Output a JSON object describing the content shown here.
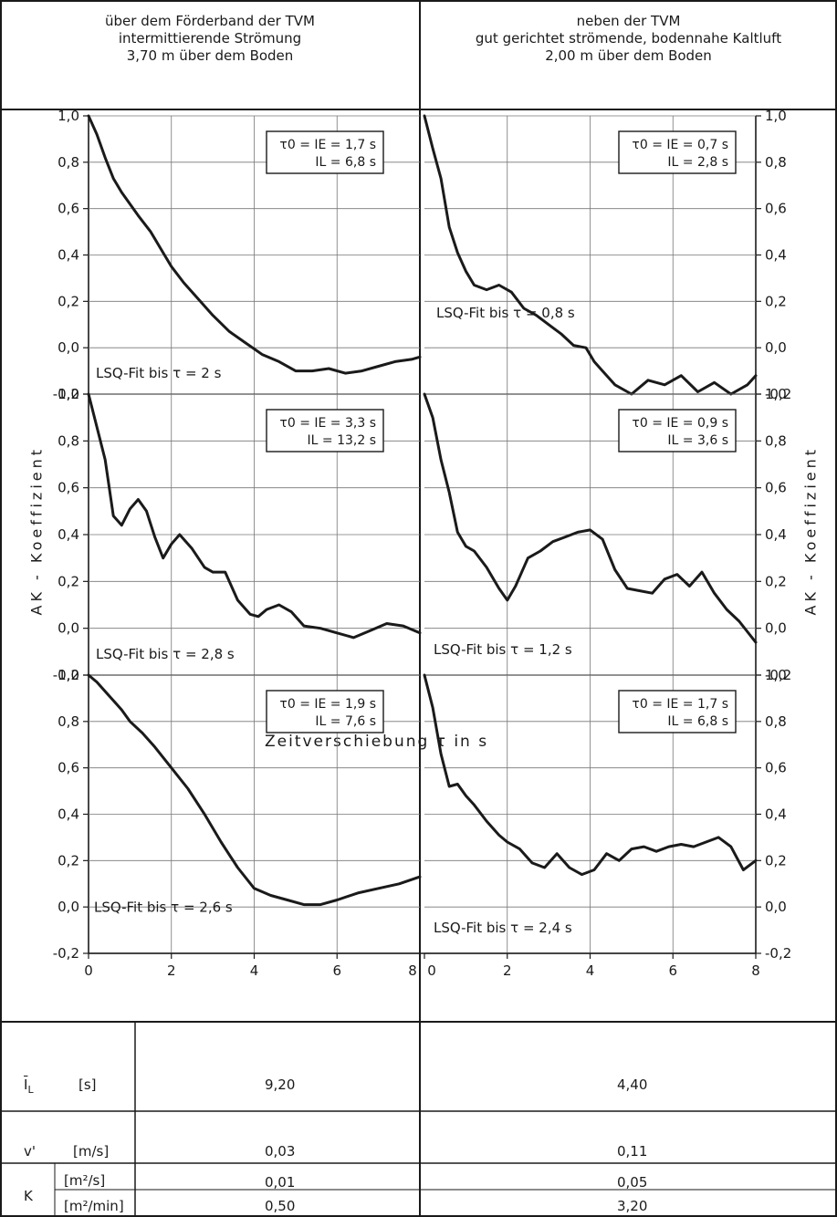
{
  "header": {
    "left": {
      "line1": "über dem Förderband der TVM",
      "line2": "intermittierende Strömung",
      "line3": "3,70 m über dem Boden"
    },
    "right": {
      "line1": "neben der TVM",
      "line2": "gut gerichtet strömende, bodennahe Kaltluft",
      "line3": "2,00 m über dem Boden"
    }
  },
  "axes": {
    "ylabel": "AK - Koeffizient",
    "xlabel": "Zeitverschiebung τ in s",
    "xticks": [
      "0",
      "2",
      "4",
      "6",
      "8"
    ],
    "yticks": [
      "1,0",
      "0,8",
      "0,6",
      "0,4",
      "0,2",
      "0,0",
      "-0,2"
    ]
  },
  "chart_data": [
    {
      "type": "line",
      "column": "left",
      "row": 1,
      "xlim": [
        0,
        8
      ],
      "ylim": [
        -0.2,
        1.0
      ],
      "grid": true,
      "box": [
        "τ0 = IE = 1,7 s",
        "IL = 6,8 s"
      ],
      "annotation": "LSQ-Fit bis τ = 2 s",
      "x": [
        0,
        0.2,
        0.4,
        0.6,
        0.8,
        1.0,
        1.2,
        1.5,
        1.8,
        2.0,
        2.3,
        2.6,
        3.0,
        3.4,
        3.8,
        4.2,
        4.6,
        5.0,
        5.4,
        5.8,
        6.2,
        6.6,
        7.0,
        7.4,
        7.8,
        8.0
      ],
      "y": [
        1.0,
        0.92,
        0.82,
        0.73,
        0.67,
        0.62,
        0.57,
        0.5,
        0.41,
        0.35,
        0.28,
        0.22,
        0.14,
        0.07,
        0.02,
        -0.03,
        -0.06,
        -0.1,
        -0.1,
        -0.09,
        -0.11,
        -0.1,
        -0.08,
        -0.06,
        -0.05,
        -0.04
      ]
    },
    {
      "type": "line",
      "column": "left",
      "row": 2,
      "xlim": [
        0,
        8
      ],
      "ylim": [
        -0.2,
        1.0
      ],
      "grid": true,
      "box": [
        "τ0 = IE = 3,3 s",
        "IL = 13,2 s"
      ],
      "annotation": "LSQ-Fit bis τ = 2,8 s",
      "x": [
        0,
        0.2,
        0.4,
        0.6,
        0.8,
        1.0,
        1.2,
        1.4,
        1.6,
        1.8,
        2.0,
        2.2,
        2.5,
        2.8,
        3.0,
        3.3,
        3.6,
        3.9,
        4.1,
        4.3,
        4.6,
        4.9,
        5.2,
        5.6,
        6.0,
        6.4,
        6.8,
        7.2,
        7.6,
        8.0
      ],
      "y": [
        1.0,
        0.86,
        0.72,
        0.48,
        0.44,
        0.51,
        0.55,
        0.5,
        0.39,
        0.3,
        0.36,
        0.4,
        0.34,
        0.26,
        0.24,
        0.24,
        0.12,
        0.06,
        0.05,
        0.08,
        0.1,
        0.07,
        0.01,
        0.0,
        -0.02,
        -0.04,
        -0.01,
        0.02,
        0.01,
        -0.02
      ]
    },
    {
      "type": "line",
      "column": "left",
      "row": 3,
      "xlim": [
        0,
        8
      ],
      "ylim": [
        -0.2,
        1.0
      ],
      "grid": true,
      "box": [
        "τ0 = IE = 1,9 s",
        "IL = 7,6 s"
      ],
      "annotation": "LSQ-Fit bis τ = 2,6 s",
      "x": [
        0,
        0.2,
        0.5,
        0.8,
        1.0,
        1.3,
        1.6,
        2.0,
        2.4,
        2.8,
        3.2,
        3.6,
        4.0,
        4.4,
        4.8,
        5.2,
        5.6,
        6.0,
        6.5,
        7.0,
        7.5,
        8.0
      ],
      "y": [
        1.0,
        0.97,
        0.91,
        0.85,
        0.8,
        0.75,
        0.69,
        0.6,
        0.51,
        0.4,
        0.28,
        0.17,
        0.08,
        0.05,
        0.03,
        0.01,
        0.01,
        0.03,
        0.06,
        0.08,
        0.1,
        0.13
      ]
    },
    {
      "type": "line",
      "column": "right",
      "row": 1,
      "xlim": [
        0,
        8
      ],
      "ylim": [
        -0.2,
        1.0
      ],
      "grid": true,
      "box": [
        "τ0 = IE = 0,7 s",
        "IL = 2,8 s"
      ],
      "annotation": "LSQ-Fit bis τ = 0,8 s",
      "x": [
        0,
        0.2,
        0.4,
        0.6,
        0.8,
        1.0,
        1.2,
        1.5,
        1.8,
        2.1,
        2.4,
        2.7,
        3.0,
        3.3,
        3.6,
        3.9,
        4.1,
        4.3,
        4.6,
        5.0,
        5.4,
        5.8,
        6.2,
        6.6,
        7.0,
        7.4,
        7.8,
        8.0
      ],
      "y": [
        1.0,
        0.86,
        0.73,
        0.52,
        0.41,
        0.33,
        0.27,
        0.25,
        0.27,
        0.24,
        0.17,
        0.14,
        0.1,
        0.06,
        0.01,
        0.0,
        -0.06,
        -0.1,
        -0.16,
        -0.2,
        -0.14,
        -0.16,
        -0.12,
        -0.19,
        -0.15,
        -0.2,
        -0.16,
        -0.12
      ]
    },
    {
      "type": "line",
      "column": "right",
      "row": 2,
      "xlim": [
        0,
        8
      ],
      "ylim": [
        -0.2,
        1.0
      ],
      "grid": true,
      "box": [
        "τ0 = IE = 0,9 s",
        "IL = 3,6 s"
      ],
      "annotation": "LSQ-Fit bis τ = 1,2 s",
      "x": [
        0,
        0.2,
        0.4,
        0.6,
        0.8,
        1.0,
        1.2,
        1.5,
        1.8,
        2.0,
        2.2,
        2.5,
        2.8,
        3.1,
        3.4,
        3.7,
        4.0,
        4.3,
        4.6,
        4.9,
        5.2,
        5.5,
        5.8,
        6.1,
        6.4,
        6.7,
        7.0,
        7.3,
        7.6,
        8.0
      ],
      "y": [
        1.0,
        0.9,
        0.72,
        0.58,
        0.41,
        0.35,
        0.33,
        0.26,
        0.17,
        0.12,
        0.18,
        0.3,
        0.33,
        0.37,
        0.39,
        0.41,
        0.42,
        0.38,
        0.25,
        0.17,
        0.16,
        0.15,
        0.21,
        0.23,
        0.18,
        0.24,
        0.15,
        0.08,
        0.03,
        -0.06
      ]
    },
    {
      "type": "line",
      "column": "right",
      "row": 3,
      "xlim": [
        0,
        8
      ],
      "ylim": [
        -0.2,
        1.0
      ],
      "grid": true,
      "box": [
        "τ0 = IE = 1,7 s",
        "IL = 6,8 s"
      ],
      "annotation": "LSQ-Fit bis τ = 2,4 s",
      "x": [
        0,
        0.2,
        0.4,
        0.6,
        0.8,
        1.0,
        1.2,
        1.5,
        1.8,
        2.0,
        2.3,
        2.6,
        2.9,
        3.2,
        3.5,
        3.8,
        4.1,
        4.4,
        4.7,
        5.0,
        5.3,
        5.6,
        5.9,
        6.2,
        6.5,
        6.8,
        7.1,
        7.4,
        7.7,
        8.0
      ],
      "y": [
        1.0,
        0.86,
        0.66,
        0.52,
        0.53,
        0.48,
        0.44,
        0.37,
        0.31,
        0.28,
        0.25,
        0.19,
        0.17,
        0.23,
        0.17,
        0.14,
        0.16,
        0.23,
        0.2,
        0.25,
        0.26,
        0.24,
        0.26,
        0.27,
        0.26,
        0.28,
        0.3,
        0.26,
        0.16,
        0.2
      ]
    }
  ],
  "table": {
    "rows": [
      {
        "symbol": "I",
        "symbol_sub": "L",
        "unit": "[s]",
        "left": "9,20",
        "right": "4,40"
      },
      {
        "symbol": "v'",
        "symbol_sub": "",
        "unit": "[m/s]",
        "left": "0,03",
        "right": "0,11"
      },
      {
        "symbol": "K",
        "symbol_sub": "",
        "unit": "[m²/s]",
        "left": "0,01",
        "right": "0,05"
      },
      {
        "symbol": "",
        "symbol_sub": "",
        "unit": "[m²/min]",
        "left": "0,50",
        "right": "3,20"
      }
    ]
  }
}
